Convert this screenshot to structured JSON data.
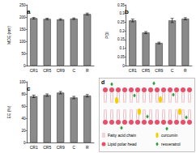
{
  "chart_data": [
    {
      "type": "bar",
      "title": "a",
      "y_label": "MDE (nm)",
      "categories": [
        "CR1",
        "CR5",
        "CR9",
        "C",
        "R"
      ],
      "values": [
        195,
        192,
        190,
        193,
        212
      ],
      "errors": [
        3,
        3,
        3,
        3,
        4
      ],
      "color": "#8a8a8a",
      "ylim": [
        0,
        250
      ],
      "yticks": [
        0,
        50,
        100,
        150,
        200,
        250
      ],
      "grid": false
    },
    {
      "type": "bar",
      "title": "b",
      "y_label": "PDI",
      "categories": [
        "CR1",
        "CR5",
        "CR9",
        "C",
        "R"
      ],
      "values": [
        0.26,
        0.19,
        0.13,
        0.26,
        0.27
      ],
      "errors": [
        0.008,
        0.006,
        0.005,
        0.012,
        0.006
      ],
      "color": "#8a8a8a",
      "ylim": [
        0,
        0.35
      ],
      "yticks": [
        0,
        0.05,
        0.1,
        0.15,
        0.2,
        0.25,
        0.3,
        0.35
      ],
      "grid": false
    },
    {
      "type": "bar",
      "title": "c",
      "y_label": "EE (%)",
      "categories": [
        "CR1",
        "CR5",
        "CR9",
        "C",
        "R"
      ],
      "values": [
        76,
        78,
        82,
        74,
        77
      ],
      "errors": [
        2,
        2,
        2,
        2,
        2
      ],
      "color": "#8a8a8a",
      "ylim": [
        0,
        100
      ],
      "yticks": [
        0,
        20,
        40,
        60,
        80,
        100
      ],
      "grid": false
    }
  ],
  "diagram": {
    "label": "d",
    "legend": {
      "tail": "Fatty acid chain",
      "head": "Lipid polar head",
      "curcumin": "curcumin",
      "resveratrol": "resveratrol"
    }
  }
}
